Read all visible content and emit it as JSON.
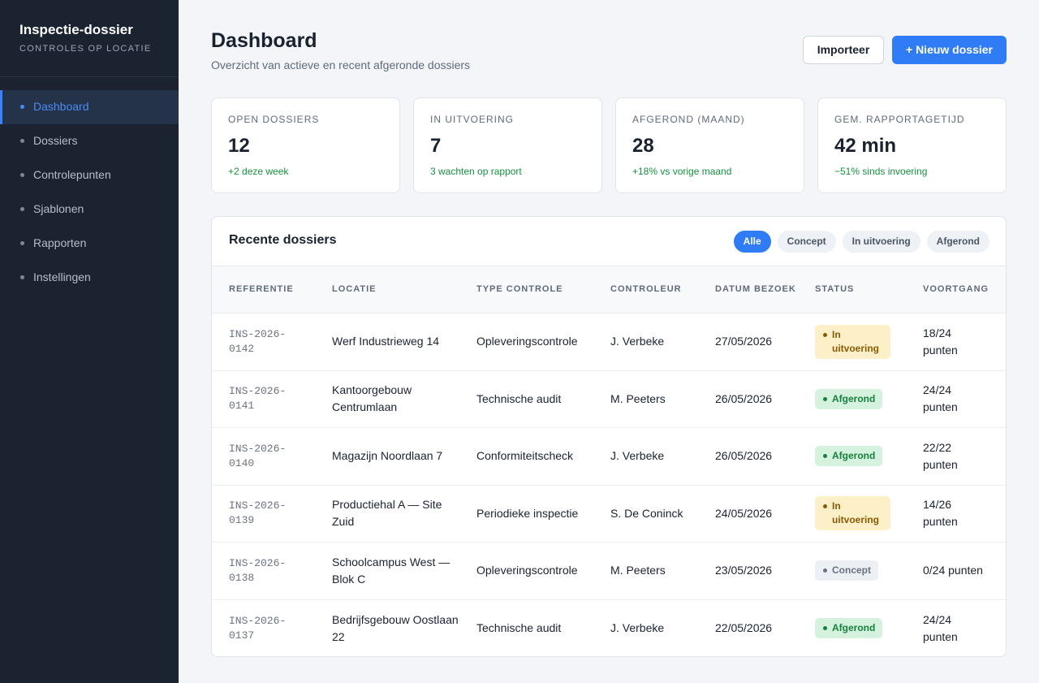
{
  "sidebar": {
    "title": "Inspectie-dossier",
    "subtitle": "CONTROLES OP LOCATIE",
    "nav": [
      "Dashboard",
      "Dossiers",
      "Controlepunten",
      "Sjablonen",
      "Rapporten",
      "Instellingen"
    ],
    "active": 0
  },
  "header": {
    "title": "Dashboard",
    "subtitle": "Overzicht van actieve en recent afgeronde dossiers",
    "buttons": [
      "Importeer",
      "+ Nieuw dossier"
    ]
  },
  "stats": [
    {
      "label": "OPEN DOSSIERS",
      "value": 12,
      "note": "+2 deze week"
    },
    {
      "label": "IN UITVOERING",
      "value": 7,
      "note": "3 wachten op rapport"
    },
    {
      "label": "AFGEROND (MAAND)",
      "value": 28,
      "note": "+18% vs vorige maand"
    },
    {
      "label": "GEM. RAPPORTAGETIJD",
      "value": "42 min",
      "note": "−51% sinds invoering"
    }
  ],
  "table": {
    "title": "Recente dossiers",
    "filters": [
      "Alle",
      "Concept",
      "In uitvoering",
      "Afgerond"
    ],
    "active_filter": 0,
    "columns": [
      "REFERENTIE",
      "LOCATIE",
      "TYPE CONTROLE",
      "CONTROLEUR",
      "DATUM BEZOEK",
      "STATUS",
      "VOORTGANG"
    ],
    "rows": [
      [
        "INS-2026-0142",
        "Werf Industrieweg 14",
        "Opleveringscontrole",
        "J. Verbeke",
        "27/05/2026",
        {
          "text": "In uitvoering",
          "color": "#8a5a00",
          "background": "#fdf0c8"
        },
        "18/24 punten"
      ],
      [
        "INS-2026-0141",
        "Kantoorgebouw Centrumlaan",
        "Technische audit",
        "M. Peeters",
        "26/05/2026",
        {
          "text": "Afgerond",
          "color": "#17803d",
          "background": "#d5f2de"
        },
        "24/24 punten"
      ],
      [
        "INS-2026-0140",
        "Magazijn Noordlaan 7",
        "Conformiteitscheck",
        "J. Verbeke",
        "26/05/2026",
        {
          "text": "Afgerond",
          "color": "#17803d",
          "background": "#d5f2de"
        },
        "22/22 punten"
      ],
      [
        "INS-2026-0139",
        "Productiehal A — Site Zuid",
        "Periodieke inspectie",
        "S. De Coninck",
        "24/05/2026",
        {
          "text": "In uitvoering",
          "color": "#8a5a00",
          "background": "#fdf0c8"
        },
        "14/26 punten"
      ],
      [
        "INS-2026-0138",
        "Schoolcampus West — Blok C",
        "Opleveringscontrole",
        "M. Peeters",
        "23/05/2026",
        {
          "text": "Concept",
          "color": "#6b7280",
          "background": "#eceff3"
        },
        "0/24 punten"
      ],
      [
        "INS-2026-0137",
        "Bedrijfsgebouw Oostlaan 22",
        "Technische audit",
        "J. Verbeke",
        "22/05/2026",
        {
          "text": "Afgerond",
          "color": "#17803d",
          "background": "#d5f2de"
        },
        "24/24 punten"
      ]
    ]
  }
}
